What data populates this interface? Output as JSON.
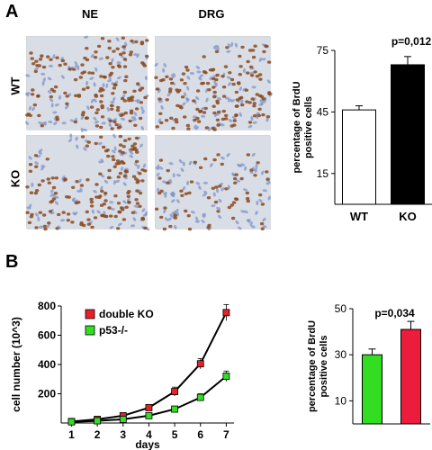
{
  "panel_a": {
    "letter": "A",
    "col_headers": [
      "NE",
      "DRG"
    ],
    "row_labels": [
      "WT",
      "KO"
    ],
    "micrographs": [
      {
        "row": "WT",
        "col": "NE",
        "tissue": "neural epithelium"
      },
      {
        "row": "WT",
        "col": "DRG",
        "tissue": "ganglion"
      },
      {
        "row": "KO",
        "col": "NE",
        "tissue": "neural epithelium with lumen"
      },
      {
        "row": "KO",
        "col": "DRG",
        "tissue": "sparse ganglion"
      }
    ],
    "stain_colors": {
      "nuclei_brown": "#8a4a1c",
      "counterstain_blue": "#7f95c9",
      "background": "#d9dde6"
    }
  },
  "panel_b": {
    "letter": "B"
  },
  "chart_data": [
    {
      "type": "bar",
      "ylabel": "percentage of BrdU positive cells",
      "categories": [
        "WT",
        "KO"
      ],
      "values": [
        46,
        68
      ],
      "errors": [
        2,
        4
      ],
      "bar_colors": [
        "#ffffff",
        "#000000"
      ],
      "yticks": [
        15,
        45,
        75
      ],
      "ylim": [
        0,
        75
      ],
      "annotation": "p=0,012"
    },
    {
      "type": "line",
      "xlabel": "days",
      "ylabel": "cell number (10^3)",
      "x": [
        1,
        2,
        3,
        4,
        5,
        6,
        7
      ],
      "xticks": [
        1,
        2,
        3,
        4,
        5,
        6,
        7
      ],
      "yticks": [
        200,
        400,
        600,
        800
      ],
      "ylim": [
        0,
        800
      ],
      "series": [
        {
          "name": "double KO",
          "color": "#e8202a",
          "values": [
            10,
            25,
            50,
            105,
            215,
            405,
            755
          ],
          "errors": [
            5,
            10,
            15,
            20,
            30,
            35,
            55
          ]
        },
        {
          "name": "p53-/-",
          "color": "#33dd22",
          "values": [
            8,
            15,
            25,
            50,
            95,
            175,
            320
          ],
          "errors": [
            5,
            5,
            10,
            10,
            15,
            25,
            35
          ]
        }
      ]
    },
    {
      "type": "bar",
      "ylabel": "percentage of BrdU positive cells",
      "categories": [
        "",
        ""
      ],
      "values": [
        30,
        41
      ],
      "errors": [
        2.5,
        3.5
      ],
      "bar_colors": [
        "#33dd22",
        "#ee1c3c"
      ],
      "yticks": [
        10,
        30,
        50
      ],
      "ylim": [
        0,
        50
      ],
      "annotation": "p=0,034"
    }
  ]
}
